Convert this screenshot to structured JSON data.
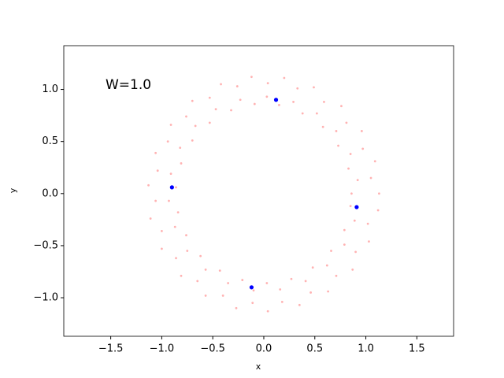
{
  "chart_data": {
    "type": "scatter",
    "annotation": "W=1.0",
    "xlabel": "x",
    "ylabel": "y",
    "xlim": [
      -1.96,
      1.86
    ],
    "ylim": [
      -1.37,
      1.42
    ],
    "xticks": [
      {
        "value": -1.5,
        "label": "−1.5"
      },
      {
        "value": -1.0,
        "label": "−1.0"
      },
      {
        "value": -0.5,
        "label": "−0.5"
      },
      {
        "value": 0,
        "label": "0.0"
      },
      0.5,
      {
        "value": 1.0,
        "label": "1.0"
      },
      1.5
    ],
    "yticks": [
      {
        "value": -1.0,
        "label": "−1.0"
      },
      {
        "value": -0.5,
        "label": "−0.5"
      },
      {
        "value": 0,
        "label": "0.0"
      },
      0.5,
      {
        "value": 1.0,
        "label": "1.0"
      }
    ],
    "series": [
      {
        "color": "#ff0000",
        "x": [
          0.86,
          0.92,
          0.83,
          0.85,
          0.73,
          0.71,
          0.58,
          0.52,
          0.38,
          0.29,
          0.15,
          0.03,
          -0.09,
          -0.23,
          -0.32,
          -0.47,
          -0.53,
          -0.67,
          -0.7,
          -0.82,
          -0.81,
          -0.91,
          -0.86,
          -0.93,
          -0.84,
          -0.87,
          -0.76,
          -0.75,
          -0.62,
          -0.57,
          -0.43,
          -0.35,
          -0.21,
          -0.1,
          0.03,
          0.16,
          0.27,
          0.41,
          0.48,
          0.62,
          0.66,
          0.79,
          0.79,
          0.89,
          0.85,
          1.13,
          1.05,
          1.09,
          0.97,
          0.96,
          0.81,
          0.76,
          0.59,
          0.49,
          0.33,
          0.2,
          0.04,
          -0.12,
          -0.26,
          -0.42,
          -0.53,
          -0.7,
          -0.76,
          -0.91,
          -0.94,
          -1.06,
          -1.04,
          -1.13,
          -1.06,
          -1.11,
          -1.0,
          -1.0,
          -0.86,
          -0.81,
          -0.65,
          -0.57,
          -0.4,
          -0.27,
          -0.11,
          0.04,
          0.18,
          0.35,
          0.46,
          0.63,
          0.71,
          0.87,
          0.9,
          1.03,
          1.02,
          1.12
        ],
        "y": [
          0,
          0.13,
          0.24,
          0.38,
          0.46,
          0.6,
          0.64,
          0.77,
          0.77,
          0.88,
          0.85,
          0.93,
          0.86,
          0.9,
          0.8,
          0.81,
          0.68,
          0.65,
          0.51,
          0.44,
          0.29,
          0.19,
          0.06,
          -0.07,
          -0.18,
          -0.32,
          -0.4,
          -0.55,
          -0.6,
          -0.73,
          -0.74,
          -0.86,
          -0.83,
          -0.93,
          -0.86,
          -0.92,
          -0.82,
          -0.84,
          -0.71,
          -0.69,
          -0.55,
          -0.49,
          -0.35,
          -0.26,
          -0.12,
          0,
          0.15,
          0.31,
          0.43,
          0.6,
          0.68,
          0.84,
          0.88,
          1.02,
          1.01,
          1.11,
          1.06,
          1.12,
          1.03,
          1.05,
          0.92,
          0.89,
          0.74,
          0.66,
          0.5,
          0.39,
          0.22,
          0.08,
          -0.07,
          -0.24,
          -0.36,
          -0.53,
          -0.62,
          -0.79,
          -0.84,
          -0.98,
          -0.98,
          -1.1,
          -1.05,
          -1.13,
          -1.04,
          -1.07,
          -0.95,
          -0.94,
          -0.79,
          -0.73,
          -0.56,
          -0.46,
          -0.29,
          -0.16
        ]
      },
      {
        "color": "#0000ff",
        "x": [
          0.12,
          -0.9,
          0.91,
          -0.12
        ],
        "y": [
          0.9,
          0.06,
          -0.13,
          -0.9
        ]
      }
    ]
  }
}
